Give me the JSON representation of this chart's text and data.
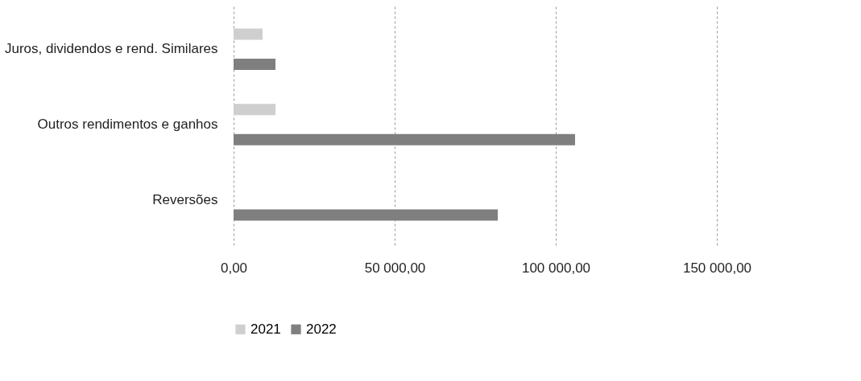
{
  "chart_data": {
    "type": "bar",
    "orientation": "horizontal",
    "categories": [
      "Juros, dividendos e rend. Similares",
      "Outros rendimentos e ganhos",
      "Reversões"
    ],
    "series": [
      {
        "name": "2021",
        "color": "#cfcfcf",
        "values": [
          9000,
          13000,
          null
        ]
      },
      {
        "name": "2022",
        "color": "#7f7f7f",
        "values": [
          13000,
          106000,
          82000
        ]
      }
    ],
    "xlim": [
      0,
      150000
    ],
    "xticks": [
      {
        "value": 0,
        "label": "0,00"
      },
      {
        "value": 50000,
        "label": "50 000,00"
      },
      {
        "value": 100000,
        "label": "100 000,00"
      },
      {
        "value": 150000,
        "label": "150 000,00"
      }
    ],
    "grid": "x",
    "legend": "bottom"
  }
}
